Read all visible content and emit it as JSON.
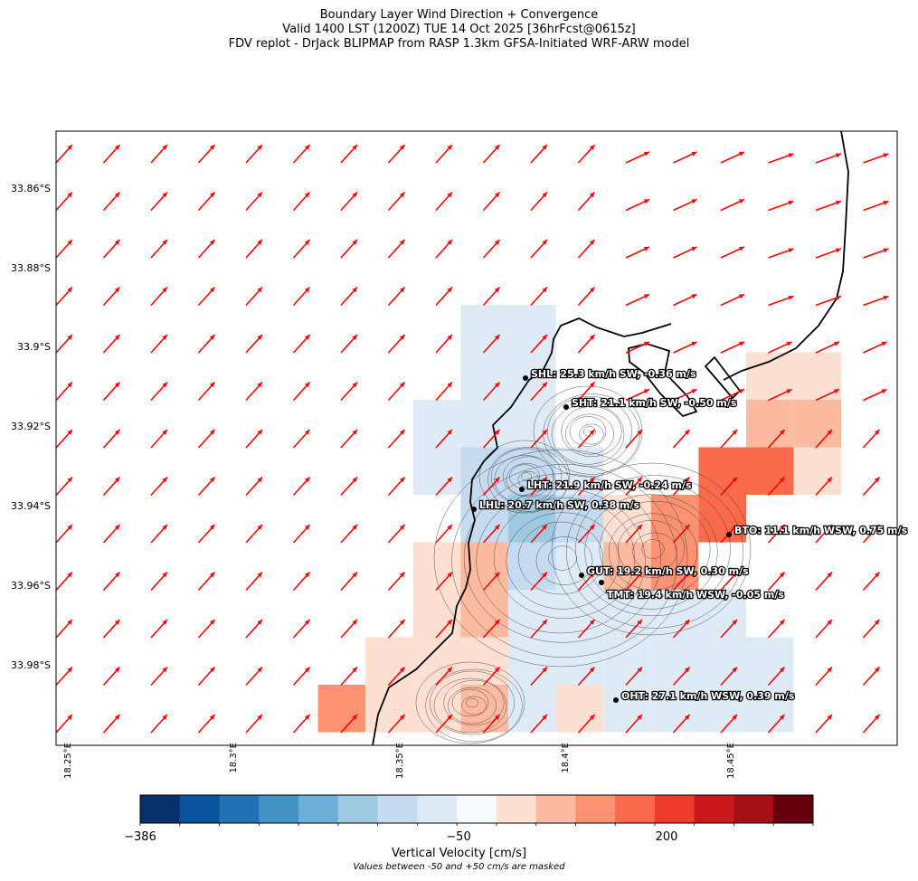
{
  "titles": {
    "line1": "Boundary Layer Wind Direction + Convergence",
    "line2": "Valid 1400 LST (1200Z) TUE 14 Oct 2025 [36hrFcst@0615z]",
    "line3": "FDV replot - DrJack BLIPMAP from RASP 1.3km GFSA-Initiated WRF-ARW model"
  },
  "chart_data": {
    "type": "heatmap",
    "y_ticks": [
      "33.86°S",
      "33.88°S",
      "33.9°S",
      "33.92°S",
      "33.94°S",
      "33.96°S",
      "33.98°S"
    ],
    "x_ticks": [
      "18.25°E",
      "18.3°E",
      "18.35°E",
      "18.4°E",
      "18.45°E"
    ],
    "colorbar": {
      "label": "Vertical Velocity [cm/s]",
      "note": "Values between -50 and +50 cm/s are masked",
      "tick_labels": [
        "−386",
        "−50",
        "200"
      ],
      "colors": [
        "#08306b",
        "#08519c",
        "#2171b5",
        "#4292c6",
        "#6baed6",
        "#9ecae1",
        "#c6dbef",
        "#deebf7",
        "#f7fbff",
        "#fee0d2",
        "#fcbba1",
        "#fc9272",
        "#fb6a4a",
        "#ef3b2c",
        "#cb181d",
        "#a50f15",
        "#67000d"
      ]
    },
    "vector_field": {
      "description_direction": "SW winds",
      "arrow_color": "#ff0000"
    },
    "stations": [
      {
        "id": "SHL",
        "label": "SHL: 25.3 km/h SW, -0.36 m/s"
      },
      {
        "id": "SHT",
        "label": "SHT: 21.1 km/h SW, -0.50 m/s"
      },
      {
        "id": "LHT",
        "label": "LHT: 21.9 km/h SW, -0.24 m/s"
      },
      {
        "id": "LHL",
        "label": "LHL: 20.7 km/h SW, 0.38 m/s"
      },
      {
        "id": "BTO",
        "label": "BTO: 11.1 km/h WSW, 0.75 m/s"
      },
      {
        "id": "GUT",
        "label": "GUT: 19.2 km/h SW, 0.30 m/s"
      },
      {
        "id": "TMT",
        "label": "TMT: 19.4 km/h WSW, -0.05 m/s"
      },
      {
        "id": "OHT",
        "label": "OHT: 27.1 km/h WSW, 0.39 m/s"
      }
    ]
  }
}
